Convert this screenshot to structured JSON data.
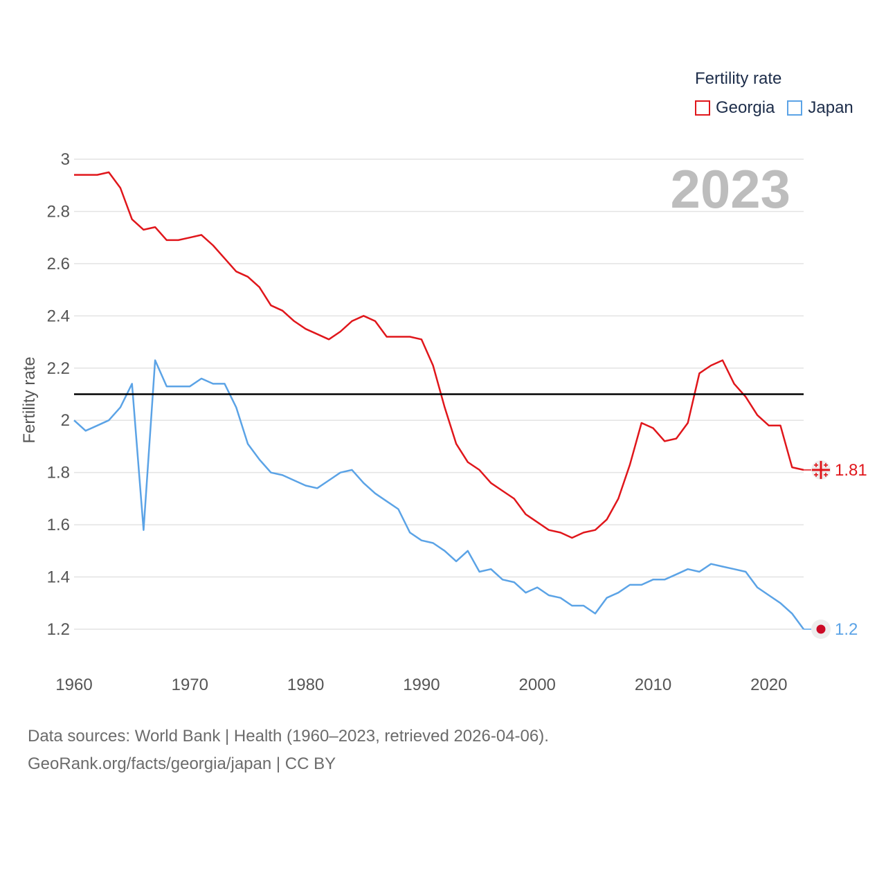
{
  "legend": {
    "title": "Fertility rate",
    "items": [
      {
        "name": "Georgia",
        "color": "#e0161b"
      },
      {
        "name": "Japan",
        "color": "#5ba3e6"
      }
    ]
  },
  "year_stamp": "2023",
  "source": {
    "line1": "Data sources: World Bank | Health (1960–2023, retrieved 2026-04-06).",
    "line2": "GeoRank.org/facts/georgia/japan | CC BY"
  },
  "chart_data": {
    "type": "line",
    "title": "Fertility rate",
    "xlabel": "",
    "ylabel": "Fertility rate",
    "xlim": [
      1960,
      2023
    ],
    "ylim": [
      1.2,
      3
    ],
    "xticks": [
      1960,
      1970,
      1980,
      1990,
      2000,
      2010,
      2020
    ],
    "yticks": [
      "1.2",
      "1.4",
      "1.6",
      "1.8",
      "2",
      "2.2",
      "2.4",
      "2.6",
      "2.8",
      "3"
    ],
    "reference_line": 2.1,
    "x": [
      1960,
      1961,
      1962,
      1963,
      1964,
      1965,
      1966,
      1967,
      1968,
      1969,
      1970,
      1971,
      1972,
      1973,
      1974,
      1975,
      1976,
      1977,
      1978,
      1979,
      1980,
      1981,
      1982,
      1983,
      1984,
      1985,
      1986,
      1987,
      1988,
      1989,
      1990,
      1991,
      1992,
      1993,
      1994,
      1995,
      1996,
      1997,
      1998,
      1999,
      2000,
      2001,
      2002,
      2003,
      2004,
      2005,
      2006,
      2007,
      2008,
      2009,
      2010,
      2011,
      2012,
      2013,
      2014,
      2015,
      2016,
      2017,
      2018,
      2019,
      2020,
      2021,
      2022,
      2023
    ],
    "series": [
      {
        "name": "Georgia",
        "color": "#e0161b",
        "end_label": "1.81",
        "flag_icon": "georgia-flag-icon",
        "values": [
          2.94,
          2.94,
          2.94,
          2.95,
          2.89,
          2.77,
          2.73,
          2.74,
          2.69,
          2.69,
          2.7,
          2.71,
          2.67,
          2.62,
          2.57,
          2.55,
          2.51,
          2.44,
          2.42,
          2.38,
          2.35,
          2.33,
          2.31,
          2.34,
          2.38,
          2.4,
          2.38,
          2.32,
          2.32,
          2.32,
          2.31,
          2.21,
          2.05,
          1.91,
          1.84,
          1.81,
          1.76,
          1.73,
          1.7,
          1.64,
          1.61,
          1.58,
          1.57,
          1.55,
          1.57,
          1.58,
          1.62,
          1.7,
          1.83,
          1.99,
          1.97,
          1.92,
          1.93,
          1.99,
          2.18,
          2.21,
          2.23,
          2.14,
          2.09,
          2.02,
          1.98,
          1.98,
          1.82,
          1.81
        ]
      },
      {
        "name": "Japan",
        "color": "#5ba3e6",
        "end_label": "1.2",
        "flag_icon": "japan-flag-icon",
        "values": [
          2.0,
          1.96,
          1.98,
          2.0,
          2.05,
          2.14,
          1.58,
          2.23,
          2.13,
          2.13,
          2.13,
          2.16,
          2.14,
          2.14,
          2.05,
          1.91,
          1.85,
          1.8,
          1.79,
          1.77,
          1.75,
          1.74,
          1.77,
          1.8,
          1.81,
          1.76,
          1.72,
          1.69,
          1.66,
          1.57,
          1.54,
          1.53,
          1.5,
          1.46,
          1.5,
          1.42,
          1.43,
          1.39,
          1.38,
          1.34,
          1.36,
          1.33,
          1.32,
          1.29,
          1.29,
          1.26,
          1.32,
          1.34,
          1.37,
          1.37,
          1.39,
          1.39,
          1.41,
          1.43,
          1.42,
          1.45,
          1.44,
          1.43,
          1.42,
          1.36,
          1.33,
          1.3,
          1.26,
          1.2
        ]
      }
    ]
  }
}
